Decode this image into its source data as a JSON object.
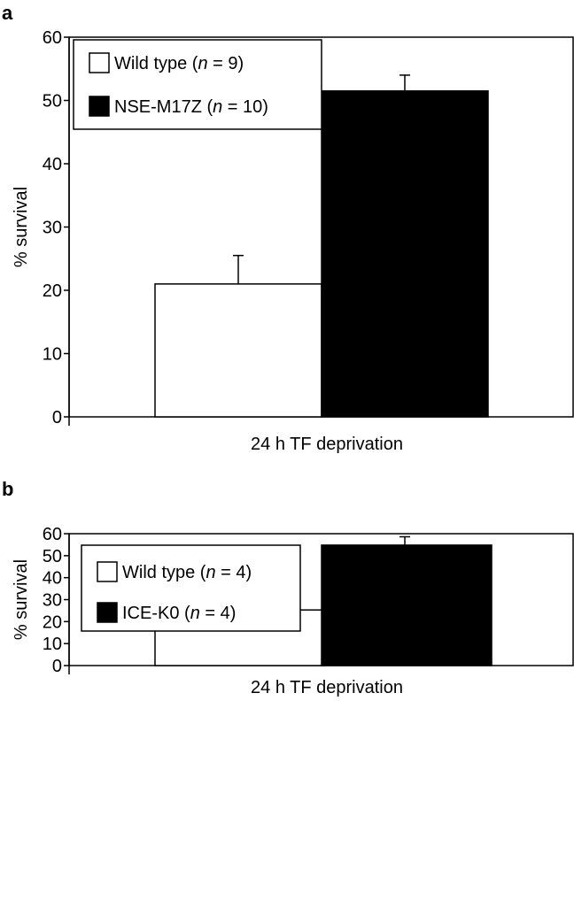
{
  "chart_data": [
    {
      "type": "bar",
      "panel_label": "a",
      "categories": [
        "24 h TF deprivation"
      ],
      "xlabel": "24 h TF deprivation",
      "ylabel": "% survival",
      "ylim": [
        0,
        60
      ],
      "yticks": [
        0,
        10,
        20,
        30,
        40,
        50,
        60
      ],
      "grid": false,
      "legend_position": "top-left",
      "series": [
        {
          "name": "Wild type (n = 9)",
          "legend_label": {
            "prefix": "Wild type (",
            "var": "n",
            "suffix": " = 9)"
          },
          "values": [
            21
          ],
          "error": [
            4.5
          ],
          "color": "#ffffff"
        },
        {
          "name": "NSE-M17Z (n = 10)",
          "legend_label": {
            "prefix": "NSE-M17Z (",
            "var": "n",
            "suffix": " = 10)"
          },
          "values": [
            51.5
          ],
          "error": [
            2.5
          ],
          "color": "#000000"
        }
      ]
    },
    {
      "type": "bar",
      "panel_label": "b",
      "categories": [
        "24 h TF deprivation"
      ],
      "xlabel": "24 h TF deprivation",
      "ylabel": "% survival",
      "ylim": [
        0,
        60
      ],
      "yticks": [
        0,
        10,
        20,
        30,
        40,
        50,
        60
      ],
      "grid": false,
      "legend_position": "top-left",
      "series": [
        {
          "name": "Wild type (n = 4)",
          "legend_label": {
            "prefix": "Wild type (",
            "var": "n",
            "suffix": " = 4)"
          },
          "values": [
            25.3
          ],
          "error": [
            2.2
          ],
          "color": "#ffffff"
        },
        {
          "name": "ICE-K0 (n = 4)",
          "legend_label": {
            "prefix": "ICE-K0 (",
            "var": "n",
            "suffix": " = 4)"
          },
          "values": [
            54.8
          ],
          "error": [
            3.8
          ],
          "color": "#000000"
        }
      ]
    }
  ]
}
